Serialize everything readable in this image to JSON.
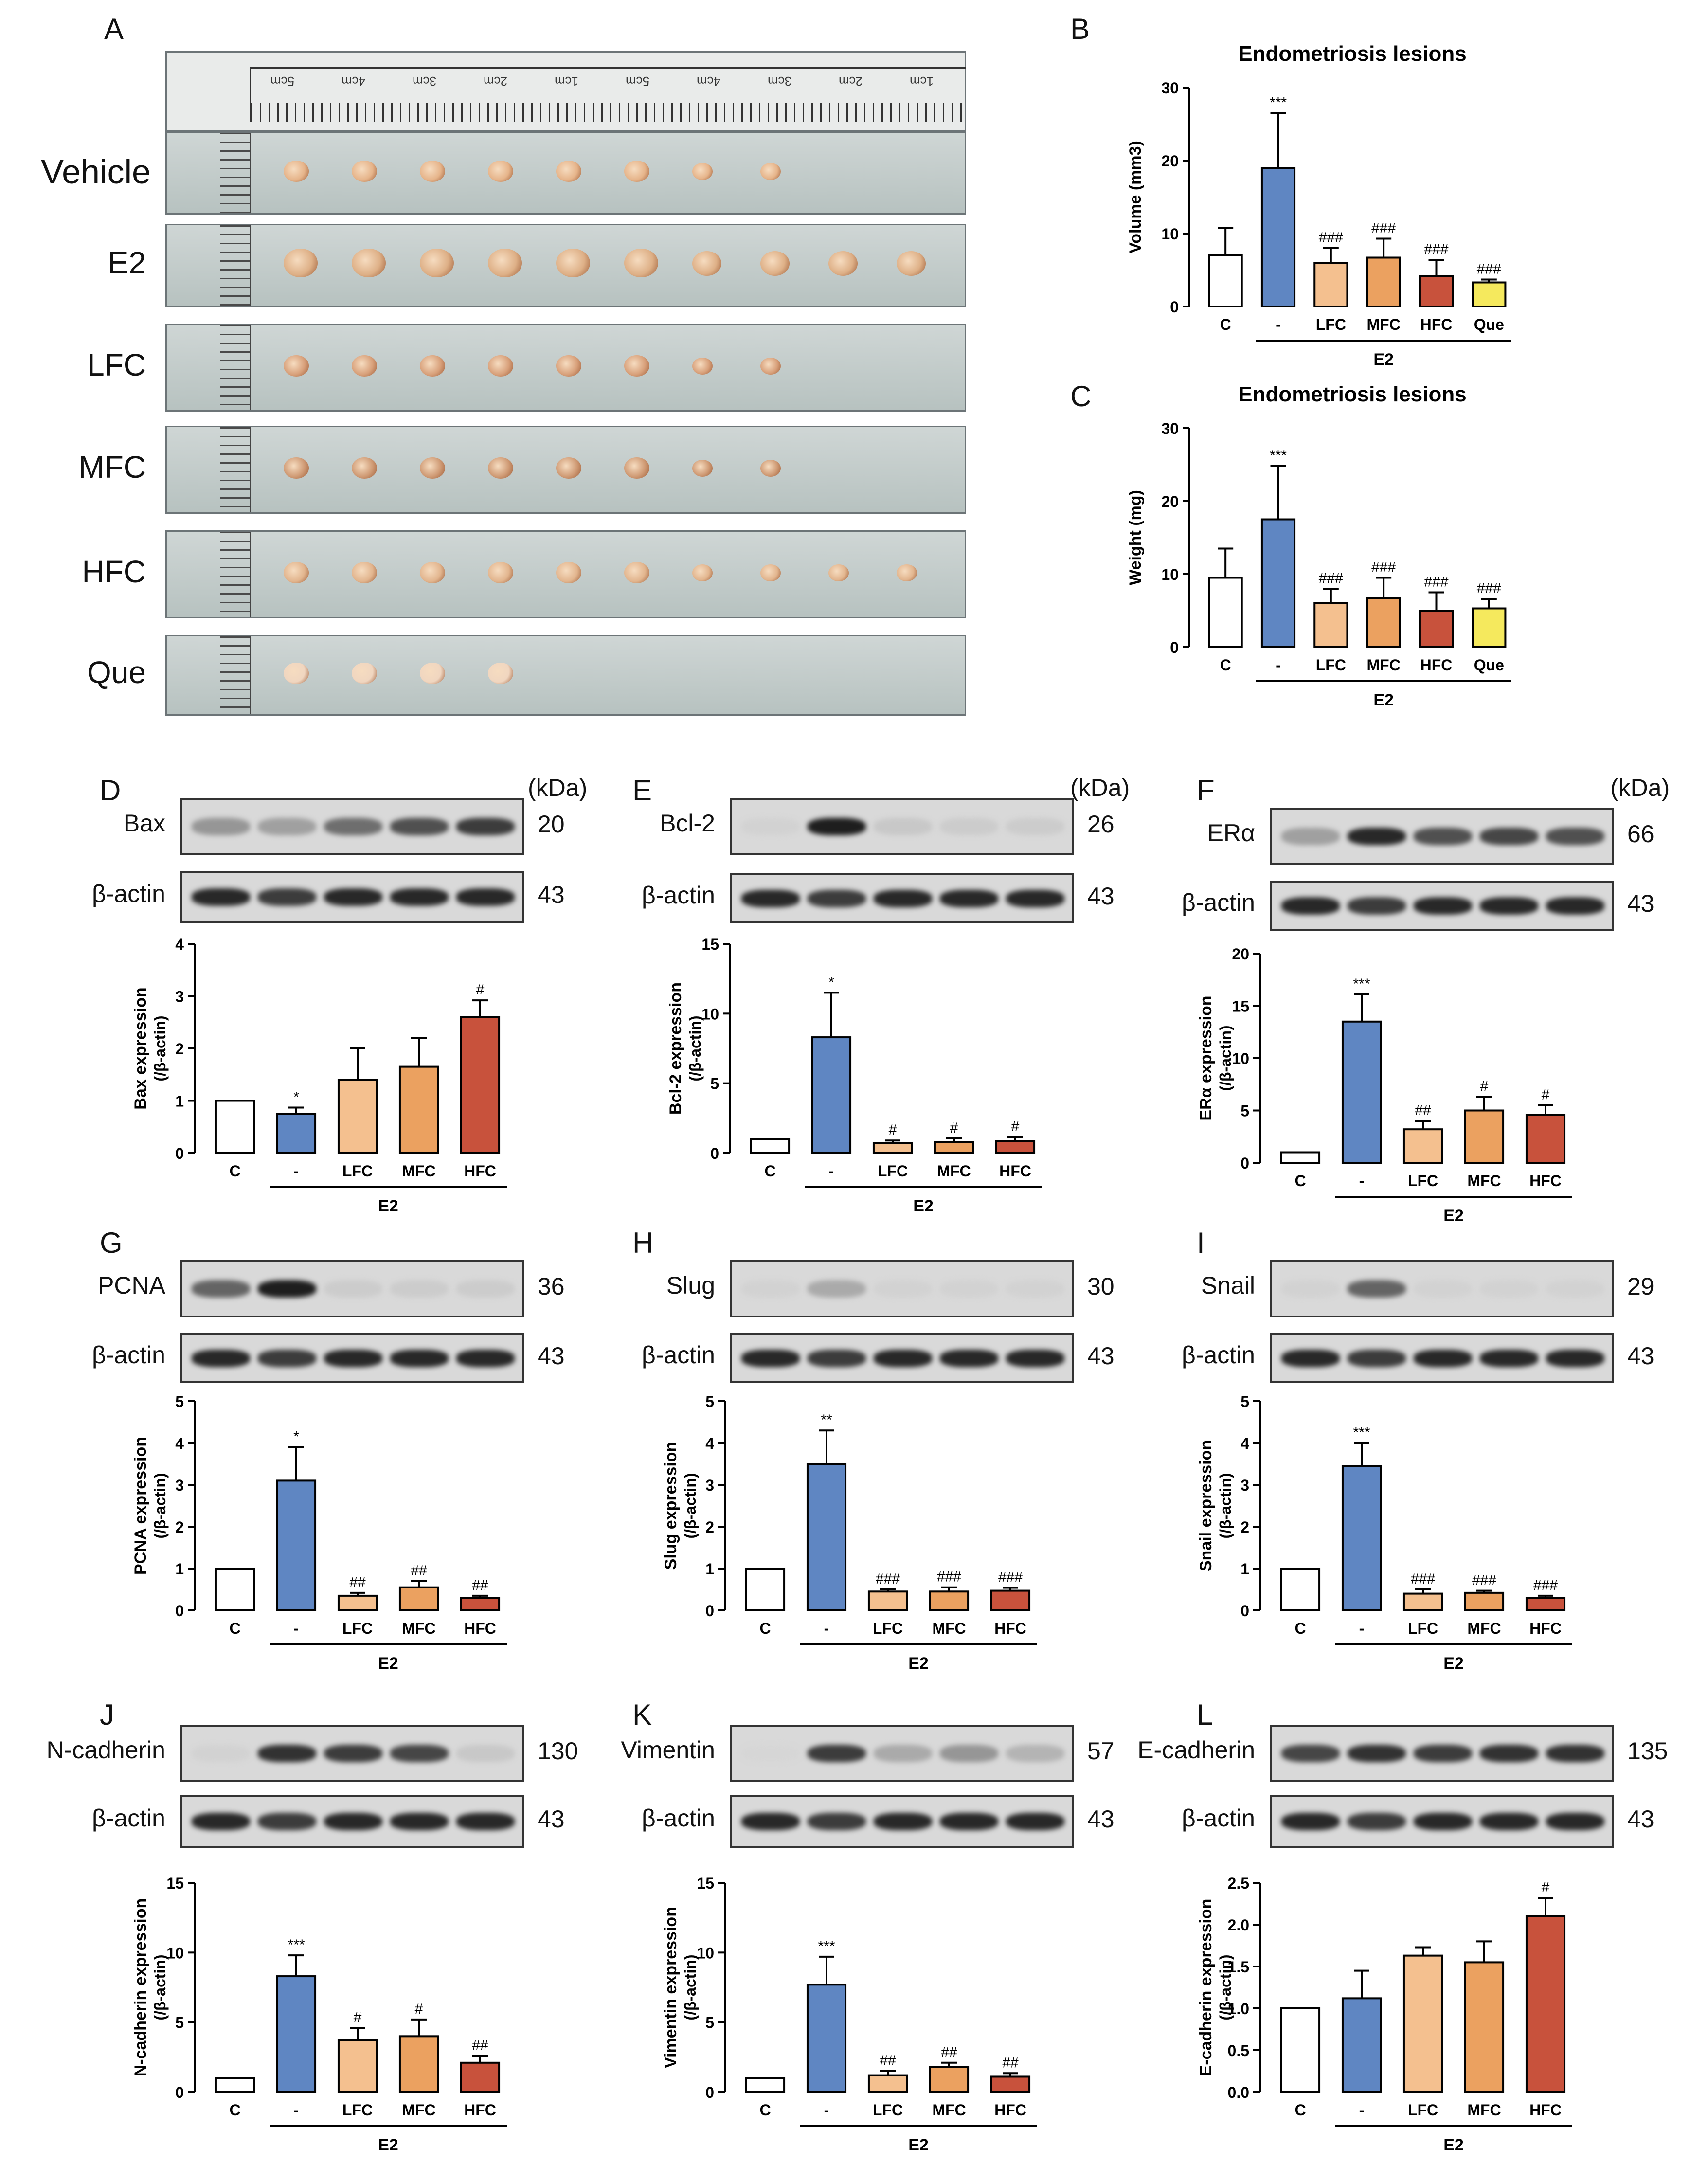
{
  "panel_letters": [
    "A",
    "B",
    "C",
    "D",
    "E",
    "F",
    "G",
    "H",
    "I",
    "J",
    "K",
    "L"
  ],
  "kda_label": "(kDa)",
  "photo_rows": [
    "Vehicle",
    "E2",
    "LFC",
    "MFC",
    "HFC",
    "Que"
  ],
  "lesion_counts": [
    8,
    10,
    8,
    8,
    10,
    4
  ],
  "ruler_text": [
    "5cm",
    "4cm",
    "3cm",
    "2cm",
    "1cm",
    "5cm",
    "4cm",
    "3cm",
    "2cm",
    "1cm"
  ],
  "group_label": "E2",
  "blots": {
    "D": {
      "target": "Bax",
      "kda": "20",
      "actin": "β-actin",
      "actin_kda": "43",
      "intensity": [
        0.35,
        0.3,
        0.55,
        0.7,
        0.8
      ]
    },
    "E": {
      "target": "Bcl-2",
      "kda": "26",
      "actin": "β-actin",
      "actin_kda": "43",
      "intensity": [
        0.05,
        0.95,
        0.1,
        0.08,
        0.08
      ]
    },
    "F": {
      "target": "ERα",
      "kda": "66",
      "actin": "β-actin",
      "actin_kda": "43",
      "intensity": [
        0.3,
        0.9,
        0.7,
        0.75,
        0.7
      ]
    },
    "G": {
      "target": "PCNA",
      "kda": "36",
      "actin": "β-actin",
      "actin_kda": "43",
      "intensity": [
        0.6,
        0.95,
        0.08,
        0.08,
        0.08
      ]
    },
    "H": {
      "target": "Slug",
      "kda": "30",
      "actin": "β-actin",
      "actin_kda": "43",
      "intensity": [
        0.05,
        0.25,
        0.05,
        0.05,
        0.05
      ]
    },
    "I": {
      "target": "Snail",
      "kda": "29",
      "actin": "β-actin",
      "actin_kda": "43",
      "intensity": [
        0.05,
        0.6,
        0.05,
        0.05,
        0.05
      ]
    },
    "J": {
      "target": "N-cadherin",
      "kda": "130",
      "actin": "β-actin",
      "actin_kda": "43",
      "intensity": [
        0.05,
        0.85,
        0.8,
        0.75,
        0.1
      ]
    },
    "K": {
      "target": "Vimentin",
      "kda": "57",
      "actin": "β-actin",
      "actin_kda": "43",
      "intensity": [
        0.03,
        0.8,
        0.25,
        0.35,
        0.2
      ]
    },
    "L": {
      "target": "E-cadherin",
      "kda": "135",
      "actin": "β-actin",
      "actin_kda": "43",
      "intensity": [
        0.75,
        0.85,
        0.8,
        0.85,
        0.85
      ]
    }
  },
  "chart_data": [
    {
      "id": "B",
      "type": "bar",
      "title": "Endometriosis lesions",
      "ylabel": "Volume (mm3)",
      "categories": [
        "C",
        "-",
        "LFC",
        "MFC",
        "HFC",
        "Que"
      ],
      "values": [
        7,
        19,
        6,
        6.7,
        4.2,
        3.3
      ],
      "errors": [
        3.8,
        7.5,
        2,
        2.6,
        2.2,
        0.4
      ],
      "sig": [
        "",
        "***",
        "###",
        "###",
        "###",
        "###"
      ],
      "ylim": [
        0,
        30
      ],
      "yticks": [
        0,
        10,
        20,
        30
      ],
      "group": "E2"
    },
    {
      "id": "C",
      "type": "bar",
      "title": "Endometriosis lesions",
      "ylabel": "Weight (mg)",
      "categories": [
        "C",
        "-",
        "LFC",
        "MFC",
        "HFC",
        "Que"
      ],
      "values": [
        9.5,
        17.5,
        6,
        6.7,
        5,
        5.3
      ],
      "errors": [
        4,
        7.3,
        2,
        2.8,
        2.5,
        1.3
      ],
      "sig": [
        "",
        "***",
        "###",
        "###",
        "###",
        "###"
      ],
      "ylim": [
        0,
        30
      ],
      "yticks": [
        0,
        10,
        20,
        30
      ],
      "group": "E2"
    },
    {
      "id": "D",
      "type": "bar",
      "ylabel": "Bax expression",
      "ylabel2": "(/β-actin)",
      "categories": [
        "C",
        "-",
        "LFC",
        "MFC",
        "HFC"
      ],
      "values": [
        1,
        0.75,
        1.4,
        1.65,
        2.6
      ],
      "errors": [
        0,
        0.12,
        0.6,
        0.55,
        0.32
      ],
      "sig": [
        "",
        "*",
        "",
        "",
        "#"
      ],
      "ylim": [
        0,
        4
      ],
      "yticks": [
        0,
        1,
        2,
        3,
        4
      ],
      "group": "E2"
    },
    {
      "id": "E",
      "type": "bar",
      "ylabel": "Bcl-2 expression",
      "ylabel2": "(/β-actin)",
      "categories": [
        "C",
        "-",
        "LFC",
        "MFC",
        "HFC"
      ],
      "values": [
        1,
        8.3,
        0.7,
        0.8,
        0.85
      ],
      "errors": [
        0,
        3.2,
        0.2,
        0.25,
        0.3
      ],
      "sig": [
        "",
        "*",
        "#",
        "#",
        "#"
      ],
      "ylim": [
        0,
        15
      ],
      "yticks": [
        0,
        5,
        10,
        15
      ],
      "group": "E2"
    },
    {
      "id": "F",
      "type": "bar",
      "ylabel": "ERα expression",
      "ylabel2": "(/β-actin)",
      "categories": [
        "C",
        "-",
        "LFC",
        "MFC",
        "HFC"
      ],
      "values": [
        1,
        13.5,
        3.2,
        5,
        4.6
      ],
      "errors": [
        0,
        2.6,
        0.8,
        1.3,
        0.9
      ],
      "sig": [
        "",
        "***",
        "##",
        "#",
        "#"
      ],
      "ylim": [
        0,
        20
      ],
      "yticks": [
        0,
        5,
        10,
        15,
        20
      ],
      "group": "E2"
    },
    {
      "id": "G",
      "type": "bar",
      "ylabel": "PCNA expression",
      "ylabel2": "(/β-actin)",
      "categories": [
        "C",
        "-",
        "LFC",
        "MFC",
        "HFC"
      ],
      "values": [
        1,
        3.1,
        0.35,
        0.55,
        0.3
      ],
      "errors": [
        0,
        0.8,
        0.07,
        0.15,
        0.05
      ],
      "sig": [
        "",
        "*",
        "##",
        "##",
        "##"
      ],
      "ylim": [
        0,
        5
      ],
      "yticks": [
        0,
        1,
        2,
        3,
        4,
        5
      ],
      "group": "E2"
    },
    {
      "id": "H",
      "type": "bar",
      "ylabel": "Slug expression",
      "ylabel2": "(/β-actin)",
      "categories": [
        "C",
        "-",
        "LFC",
        "MFC",
        "HFC"
      ],
      "values": [
        1,
        3.5,
        0.45,
        0.45,
        0.47
      ],
      "errors": [
        0,
        0.8,
        0.05,
        0.1,
        0.07
      ],
      "sig": [
        "",
        "**",
        "###",
        "###",
        "###"
      ],
      "ylim": [
        0,
        5
      ],
      "yticks": [
        0,
        1,
        2,
        3,
        4,
        5
      ],
      "group": "E2"
    },
    {
      "id": "I",
      "type": "bar",
      "ylabel": "Snail expression",
      "ylabel2": "(/β-actin)",
      "categories": [
        "C",
        "-",
        "LFC",
        "MFC",
        "HFC"
      ],
      "values": [
        1,
        3.45,
        0.4,
        0.42,
        0.3
      ],
      "errors": [
        0,
        0.55,
        0.1,
        0.05,
        0.05
      ],
      "sig": [
        "",
        "***",
        "###",
        "###",
        "###"
      ],
      "ylim": [
        0,
        5
      ],
      "yticks": [
        0,
        1,
        2,
        3,
        4,
        5
      ],
      "group": "E2"
    },
    {
      "id": "J",
      "type": "bar",
      "ylabel": "N-cadherin expression",
      "ylabel2": "(/β-actin)",
      "categories": [
        "C",
        "-",
        "LFC",
        "MFC",
        "HFC"
      ],
      "values": [
        1,
        8.3,
        3.7,
        4,
        2.1
      ],
      "errors": [
        0,
        1.5,
        0.9,
        1.2,
        0.5
      ],
      "sig": [
        "",
        "***",
        "#",
        "#",
        "##"
      ],
      "ylim": [
        0,
        15
      ],
      "yticks": [
        0,
        5,
        10,
        15
      ],
      "group": "E2"
    },
    {
      "id": "K",
      "type": "bar",
      "ylabel": "Vimentin expression",
      "ylabel2": "(/β-actin)",
      "categories": [
        "C",
        "-",
        "LFC",
        "MFC",
        "HFC"
      ],
      "values": [
        1,
        7.7,
        1.2,
        1.8,
        1.1
      ],
      "errors": [
        0,
        2,
        0.3,
        0.3,
        0.25
      ],
      "sig": [
        "",
        "***",
        "##",
        "##",
        "##"
      ],
      "ylim": [
        0,
        15
      ],
      "yticks": [
        0,
        5,
        10,
        15
      ],
      "group": "E2"
    },
    {
      "id": "L",
      "type": "bar",
      "ylabel": "E-cadherin expression",
      "ylabel2": "(/β-actin)",
      "categories": [
        "C",
        "-",
        "LFC",
        "MFC",
        "HFC"
      ],
      "values": [
        1,
        1.12,
        1.63,
        1.55,
        2.1
      ],
      "errors": [
        0,
        0.33,
        0.1,
        0.25,
        0.22
      ],
      "sig": [
        "",
        "",
        "",
        "",
        "#"
      ],
      "ylim": [
        0,
        2.5
      ],
      "yticks": [
        0.0,
        0.5,
        1.0,
        1.5,
        2.0,
        2.5
      ],
      "group": "E2"
    }
  ],
  "colors": {
    "C": "#ffffff",
    "minus": "#5f86c2",
    "LFC": "#f4c08f",
    "MFC": "#eba160",
    "HFC": "#c8523c",
    "Que": "#f5e95d"
  }
}
